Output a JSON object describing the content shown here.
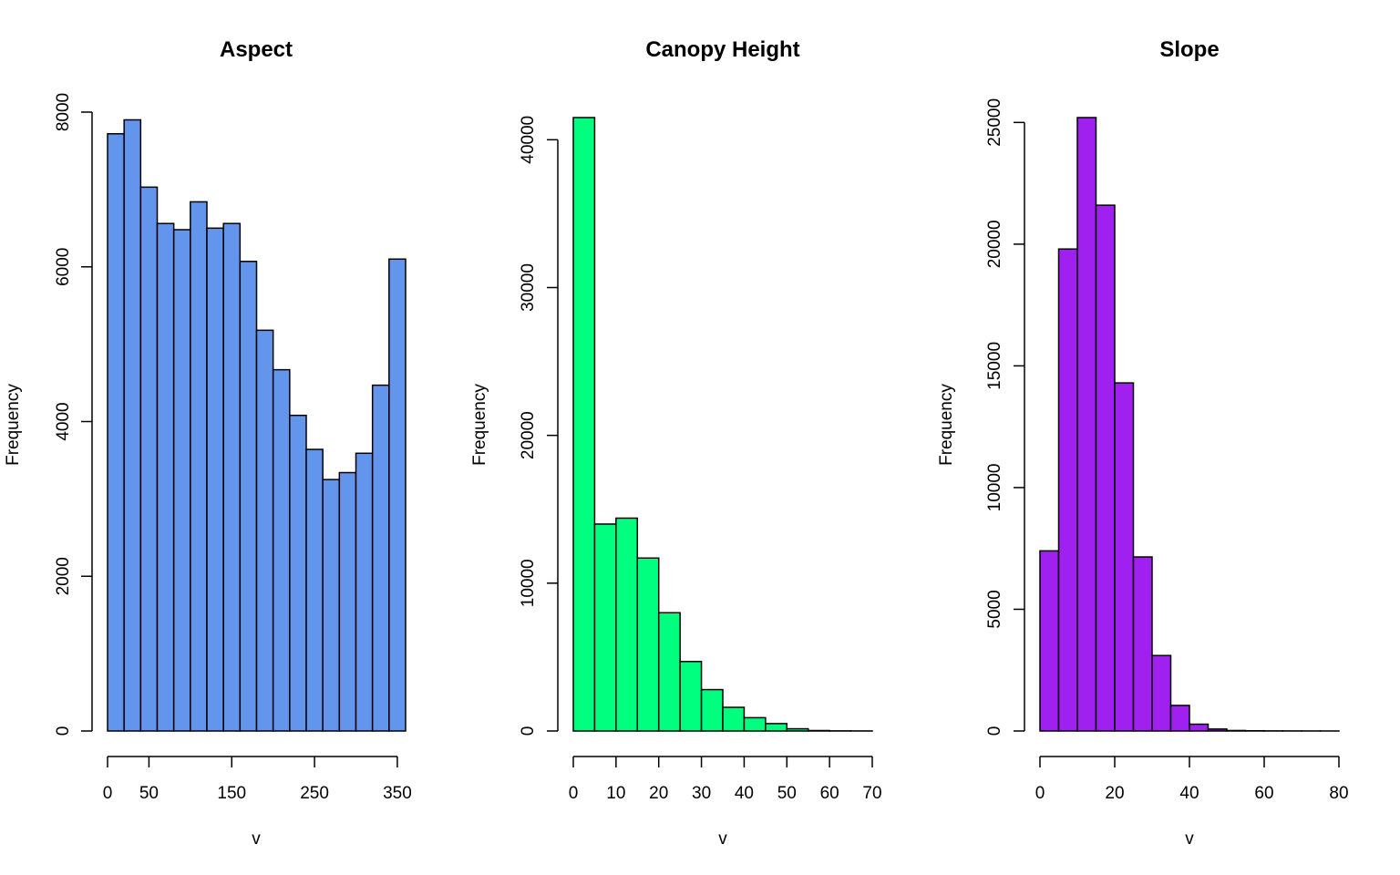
{
  "chart_data": [
    {
      "type": "bar",
      "title": "Aspect",
      "xlabel": "v",
      "ylabel": "Frequency",
      "color": "#6495ED",
      "xlim": [
        0,
        360
      ],
      "ylim": [
        0,
        8000
      ],
      "xticks": [
        0,
        50,
        150,
        250,
        350
      ],
      "yticks": [
        0,
        2000,
        4000,
        6000,
        8000
      ],
      "bin_edges": [
        0,
        20,
        40,
        60,
        80,
        100,
        120,
        140,
        160,
        180,
        200,
        220,
        240,
        260,
        280,
        300,
        320,
        340,
        360
      ],
      "values": [
        7720,
        7900,
        7030,
        6560,
        6480,
        6840,
        6500,
        6560,
        6070,
        5180,
        4670,
        4080,
        3640,
        3250,
        3340,
        3590,
        4470,
        6100
      ]
    },
    {
      "type": "bar",
      "title": "Canopy Height",
      "xlabel": "v",
      "ylabel": "Frequency",
      "color": "#00FF7F",
      "xlim": [
        0,
        70
      ],
      "ylim": [
        0,
        41500
      ],
      "xticks": [
        0,
        10,
        20,
        30,
        40,
        50,
        60,
        70
      ],
      "yticks": [
        0,
        10000,
        20000,
        30000,
        40000
      ],
      "bin_edges": [
        0,
        5,
        10,
        15,
        20,
        25,
        30,
        35,
        40,
        45,
        50,
        55,
        60,
        65,
        70
      ],
      "values": [
        41500,
        14000,
        14400,
        11700,
        8000,
        4700,
        2800,
        1600,
        900,
        500,
        150,
        30,
        10,
        5
      ]
    },
    {
      "type": "bar",
      "title": "Slope",
      "xlabel": "v",
      "ylabel": "Frequency",
      "color": "#A020F0",
      "xlim": [
        0,
        80
      ],
      "ylim": [
        0,
        25200
      ],
      "xticks": [
        0,
        20,
        40,
        60,
        80
      ],
      "yticks": [
        0,
        5000,
        10000,
        15000,
        20000,
        25000
      ],
      "bin_edges": [
        0,
        5,
        10,
        15,
        20,
        25,
        30,
        35,
        40,
        45,
        50,
        55,
        60,
        65,
        70,
        75,
        80
      ],
      "values": [
        7400,
        19800,
        25200,
        21600,
        14300,
        7150,
        3100,
        1050,
        280,
        80,
        20,
        10,
        5,
        3,
        2,
        1
      ]
    }
  ]
}
